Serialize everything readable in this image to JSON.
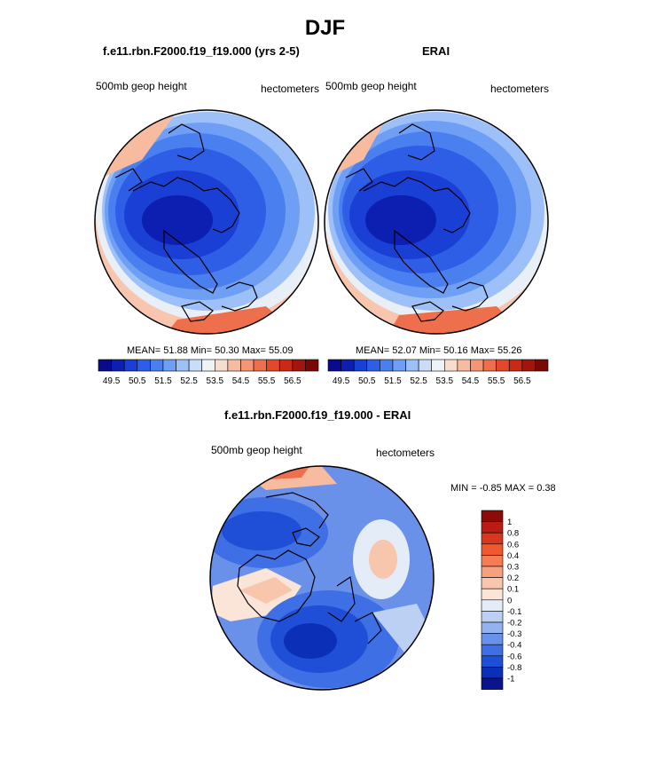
{
  "figure": {
    "title": "DJF",
    "diff_title": "f.e11.rbn.F2000.f19_f19.000 - ERAI"
  },
  "panels": [
    {
      "title": "f.e11.rbn.F2000.f19_f19.000 (yrs 2-5)",
      "left_label": "500mb geop height",
      "right_label": "hectometers",
      "stats": {
        "mean": "51.88",
        "min": "50.30",
        "max": "55.09"
      }
    },
    {
      "title": "ERAI",
      "left_label": "500mb geop height",
      "right_label": "hectometers",
      "stats": {
        "mean": "52.07",
        "min": "50.16",
        "max": "55.26"
      }
    }
  ],
  "stats_labels": {
    "mean": "MEAN=",
    "min": "Min=",
    "max": "Max="
  },
  "diff_panel": {
    "left_label": "500mb geop height",
    "right_label": "hectometers",
    "minmax_text": "MIN =  -0.85 MAX =   0.38"
  },
  "horizontal_colorbar": {
    "tick_labels": [
      "49.5",
      "50.5",
      "51.5",
      "52.5",
      "53.5",
      "54.5",
      "55.5",
      "56.5"
    ],
    "colors": [
      "#0a0a8c",
      "#0c1fb0",
      "#1a3fd4",
      "#2e5ee6",
      "#4a7ff0",
      "#6f9ff5",
      "#9cc0f7",
      "#c9dcf8",
      "#eef3f8",
      "#f8ddcc",
      "#f7bba0",
      "#f49676",
      "#ee6f4c",
      "#e2482a",
      "#c82a16",
      "#a1150c",
      "#7a0806"
    ]
  },
  "vertical_colorbar": {
    "tick_labels": [
      "1",
      "0.8",
      "0.6",
      "0.4",
      "0.3",
      "0.2",
      "0.1",
      "0",
      "-0.1",
      "-0.2",
      "-0.3",
      "-0.4",
      "-0.6",
      "-0.8",
      "-1"
    ],
    "colors": [
      "#8c0a08",
      "#b81c12",
      "#d9361e",
      "#ee5a2e",
      "#f47d55",
      "#f6a07e",
      "#f8c5ad",
      "#fbe4d8",
      "#e4ecf8",
      "#bcd0f4",
      "#93b2ef",
      "#6a91ea",
      "#3e6fe4",
      "#1f4fd6",
      "#0c2fb8",
      "#0a148c"
    ]
  },
  "chart_data": {
    "type": "heatmap",
    "variable": "500mb geop height",
    "units": "hectometers",
    "season": "DJF",
    "maps": [
      {
        "name": "f.e11.rbn.F2000.f19_f19.000 (yrs 2-5)",
        "mean": 51.88,
        "min": 50.3,
        "max": 55.09
      },
      {
        "name": "ERAI",
        "mean": 52.07,
        "min": 50.16,
        "max": 55.26
      },
      {
        "name": "f.e11.rbn.F2000.f19_f19.000 - ERAI",
        "min": -0.85,
        "max": 0.38
      }
    ],
    "colorbar_levels": [
      49.5,
      50.0,
      50.5,
      51.0,
      51.5,
      52.0,
      52.5,
      53.0,
      53.5,
      54.0,
      54.5,
      55.0,
      55.5,
      56.0,
      56.5
    ],
    "diff_colorbar_levels": [
      -1,
      -0.8,
      -0.6,
      -0.4,
      -0.3,
      -0.2,
      -0.1,
      0,
      0.1,
      0.2,
      0.3,
      0.4,
      0.6,
      0.8,
      1
    ]
  }
}
